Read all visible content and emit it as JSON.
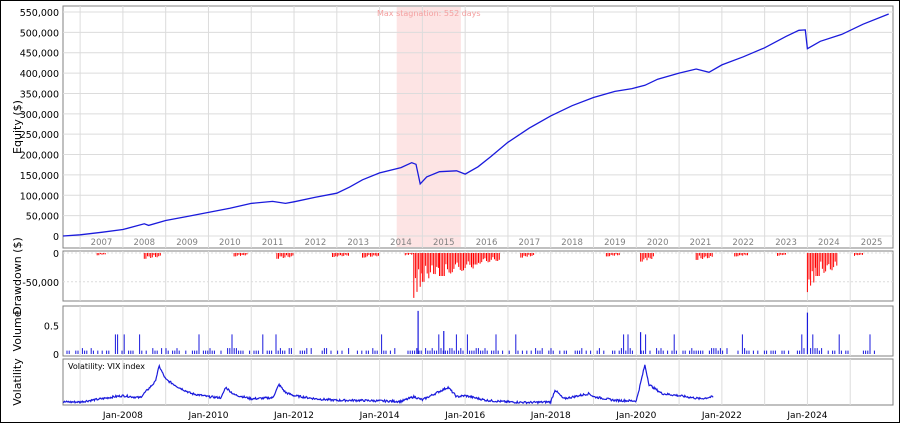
{
  "colors": {
    "equity": "#1a1adc",
    "drawdown": "#ff0000",
    "volume": "#1a1adc",
    "volatility": "#1a1adc",
    "stagnation_fill": "#fde4e4",
    "stagnation_text": "#f4a0a0",
    "grid": "#dcdcdc",
    "axis": "#000000"
  },
  "chart_data": [
    {
      "type": "line",
      "name": "equity",
      "ylabel": "Equity ($)",
      "ylim": [
        0,
        550000
      ],
      "yticks": [
        0,
        50000,
        100000,
        150000,
        200000,
        250000,
        300000,
        350000,
        400000,
        450000,
        500000,
        550000
      ],
      "ytick_labels": [
        "0",
        "50,000",
        "100,000",
        "150,000",
        "200,000",
        "250,000",
        "300,000",
        "350,000",
        "400,000",
        "450,000",
        "500,000",
        "550,000"
      ],
      "xlim": [
        2006.6,
        2026.0
      ],
      "year_labels": [
        "2007",
        "2008",
        "2009",
        "2010",
        "2011",
        "2012",
        "2013",
        "2014",
        "2015",
        "2016",
        "2017",
        "2018",
        "2019",
        "2020",
        "2021",
        "2022",
        "2023",
        "2024",
        "2025"
      ],
      "grid": true,
      "annotation": {
        "text": "Max stagnation: 552 days",
        "x_start": 2014.4,
        "x_end": 2015.9
      },
      "points": [
        [
          2006.6,
          0
        ],
        [
          2007.0,
          3000
        ],
        [
          2007.5,
          9000
        ],
        [
          2008.0,
          16000
        ],
        [
          2008.5,
          30000
        ],
        [
          2008.6,
          26000
        ],
        [
          2009.0,
          38000
        ],
        [
          2009.5,
          48000
        ],
        [
          2010.0,
          58000
        ],
        [
          2010.5,
          68000
        ],
        [
          2011.0,
          80000
        ],
        [
          2011.5,
          85000
        ],
        [
          2011.8,
          80000
        ],
        [
          2012.0,
          84000
        ],
        [
          2012.5,
          95000
        ],
        [
          2013.0,
          105000
        ],
        [
          2013.3,
          120000
        ],
        [
          2013.6,
          138000
        ],
        [
          2014.0,
          155000
        ],
        [
          2014.5,
          168000
        ],
        [
          2014.75,
          180000
        ],
        [
          2014.85,
          176000
        ],
        [
          2014.95,
          128000
        ],
        [
          2015.1,
          145000
        ],
        [
          2015.4,
          158000
        ],
        [
          2015.8,
          160000
        ],
        [
          2016.0,
          152000
        ],
        [
          2016.3,
          170000
        ],
        [
          2016.6,
          195000
        ],
        [
          2017.0,
          230000
        ],
        [
          2017.5,
          265000
        ],
        [
          2018.0,
          295000
        ],
        [
          2018.5,
          320000
        ],
        [
          2019.0,
          340000
        ],
        [
          2019.5,
          355000
        ],
        [
          2019.9,
          362000
        ],
        [
          2020.2,
          370000
        ],
        [
          2020.5,
          385000
        ],
        [
          2021.0,
          400000
        ],
        [
          2021.4,
          410000
        ],
        [
          2021.7,
          402000
        ],
        [
          2022.0,
          420000
        ],
        [
          2022.5,
          440000
        ],
        [
          2023.0,
          462000
        ],
        [
          2023.5,
          490000
        ],
        [
          2023.8,
          505000
        ],
        [
          2023.95,
          506000
        ],
        [
          2024.0,
          460000
        ],
        [
          2024.3,
          478000
        ],
        [
          2024.8,
          495000
        ],
        [
          2025.3,
          520000
        ],
        [
          2025.9,
          545000
        ]
      ]
    },
    {
      "type": "bar",
      "name": "drawdown",
      "ylabel": "Drawdown ($)",
      "ylim": [
        -80000,
        0
      ],
      "yticks": [
        0,
        -50000
      ],
      "ytick_labels": [
        "0",
        "-50,000"
      ],
      "segments": [
        [
          2007.4,
          2007.6,
          -4000
        ],
        [
          2008.5,
          2008.9,
          -10000
        ],
        [
          2010.6,
          2010.9,
          -6000
        ],
        [
          2011.6,
          2012.0,
          -10000
        ],
        [
          2012.9,
          2013.3,
          -7000
        ],
        [
          2013.6,
          2014.0,
          -8000
        ],
        [
          2014.6,
          2014.8,
          -4000
        ],
        [
          2014.8,
          2015.0,
          -78000
        ],
        [
          2015.0,
          2015.4,
          -50000
        ],
        [
          2015.4,
          2016.2,
          -40000
        ],
        [
          2016.2,
          2016.8,
          -20000
        ],
        [
          2017.3,
          2017.6,
          -8000
        ],
        [
          2019.3,
          2019.6,
          -6000
        ],
        [
          2020.1,
          2020.4,
          -15000
        ],
        [
          2021.4,
          2021.8,
          -12000
        ],
        [
          2022.3,
          2022.6,
          -6000
        ],
        [
          2023.3,
          2023.5,
          -5000
        ],
        [
          2024.0,
          2024.2,
          -68000
        ],
        [
          2024.2,
          2024.7,
          -40000
        ],
        [
          2025.1,
          2025.3,
          -5000
        ]
      ]
    },
    {
      "type": "bar",
      "name": "volume",
      "ylabel": "Volume",
      "ylim": [
        0,
        0.8
      ],
      "yticks": [
        0,
        0.5
      ],
      "ytick_labels": [
        "0",
        "0.5"
      ],
      "spikes": [
        [
          2014.9,
          0.75
        ],
        [
          2024.0,
          0.72
        ],
        [
          2015.5,
          0.4
        ],
        [
          2020.1,
          0.38
        ]
      ],
      "base_level": 0.17
    },
    {
      "type": "line",
      "name": "volatility",
      "ylabel": "Volatility",
      "legend": "Volatility: VIX index",
      "ylim": [
        10,
        90
      ],
      "xlim": [
        2006.6,
        2026.0
      ],
      "date_labels": [
        "Jan-2008",
        "Jan-2010",
        "Jan-2012",
        "Jan-2014",
        "Jan-2016",
        "Jan-2018",
        "Jan-2020",
        "Jan-2022",
        "Jan-2024"
      ],
      "points": [
        [
          2006.6,
          12
        ],
        [
          2007.0,
          12
        ],
        [
          2007.5,
          18
        ],
        [
          2007.8,
          22
        ],
        [
          2008.0,
          24
        ],
        [
          2008.4,
          20
        ],
        [
          2008.75,
          50
        ],
        [
          2008.85,
          80
        ],
        [
          2009.0,
          55
        ],
        [
          2009.3,
          40
        ],
        [
          2009.6,
          28
        ],
        [
          2010.0,
          22
        ],
        [
          2010.3,
          20
        ],
        [
          2010.4,
          40
        ],
        [
          2010.6,
          26
        ],
        [
          2011.0,
          18
        ],
        [
          2011.5,
          20
        ],
        [
          2011.65,
          45
        ],
        [
          2011.8,
          30
        ],
        [
          2012.0,
          24
        ],
        [
          2012.5,
          18
        ],
        [
          2013.0,
          15
        ],
        [
          2013.5,
          15
        ],
        [
          2014.0,
          14
        ],
        [
          2014.5,
          13
        ],
        [
          2014.8,
          22
        ],
        [
          2015.0,
          16
        ],
        [
          2015.6,
          40
        ],
        [
          2015.8,
          22
        ],
        [
          2016.0,
          24
        ],
        [
          2016.5,
          15
        ],
        [
          2017.0,
          12
        ],
        [
          2017.5,
          11
        ],
        [
          2018.0,
          12
        ],
        [
          2018.1,
          35
        ],
        [
          2018.3,
          18
        ],
        [
          2018.9,
          28
        ],
        [
          2019.0,
          22
        ],
        [
          2019.5,
          15
        ],
        [
          2020.0,
          14
        ],
        [
          2020.2,
          82
        ],
        [
          2020.3,
          45
        ],
        [
          2020.6,
          28
        ],
        [
          2021.0,
          24
        ],
        [
          2021.5,
          18
        ],
        [
          2021.8,
          22
        ]
      ]
    }
  ]
}
